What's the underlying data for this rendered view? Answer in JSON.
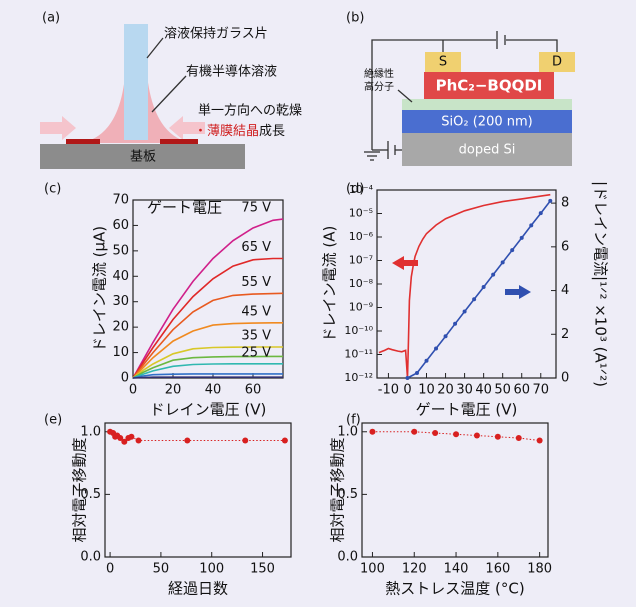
{
  "diagram_a": {
    "label": "(a)",
    "glass": "溶液保持ガラス片",
    "solution": "有機半導体溶液",
    "drying": "単一方向への乾燥",
    "growth_prefix": "・",
    "growth_highlight": "薄膜結晶",
    "growth_suffix": "成長",
    "substrate": "基板"
  },
  "diagram_b": {
    "label": "(b)",
    "source": "S",
    "drain": "D",
    "semiconductor": "PhC₂−BQQDI",
    "insulator": [
      "絶縁性",
      "高分子"
    ],
    "oxide": "SiO₂ (200 nm)",
    "gate": "doped Si"
  },
  "chart_data": [
    {
      "type": "line",
      "label": "(c)",
      "annotation": "ゲート電圧",
      "xlabel": "ドレイン電圧 (V)",
      "ylabel": "ドレイン電流 (μA)",
      "x": [
        0,
        5,
        10,
        20,
        30,
        40,
        50,
        60,
        70,
        75
      ],
      "xlim": [
        0,
        75
      ],
      "xticks": [
        0,
        20,
        40,
        60
      ],
      "ylim": [
        0,
        70
      ],
      "yticks": [
        0,
        10,
        20,
        30,
        40,
        50,
        60,
        70
      ],
      "series": [
        {
          "name": "75 V",
          "color": "#d0208a",
          "values": [
            0,
            7,
            14,
            27,
            38,
            47,
            54,
            59,
            62,
            62.5
          ]
        },
        {
          "name": "65 V",
          "color": "#e02828",
          "values": [
            0,
            6,
            12,
            23,
            32,
            39,
            44,
            46.5,
            47,
            47
          ]
        },
        {
          "name": "55 V",
          "color": "#e85a20",
          "values": [
            0,
            5,
            10,
            19,
            26,
            30.5,
            32.5,
            33,
            33.2,
            33.3
          ]
        },
        {
          "name": "45 V",
          "color": "#f08a20",
          "values": [
            0,
            4,
            8,
            14.5,
            18.5,
            20.8,
            21.4,
            21.6,
            21.7,
            21.7
          ]
        },
        {
          "name": "35 V",
          "color": "#d8c828",
          "values": [
            0,
            3,
            5.5,
            9.5,
            11.5,
            12,
            12.1,
            12.2,
            12.2,
            12.2
          ]
        },
        {
          "color": "#6cb840",
          "values": [
            0,
            2.2,
            4,
            7,
            8,
            8.3,
            8.4,
            8.4,
            8.5,
            8.5
          ]
        },
        {
          "name": "25 V",
          "color": "#30b8b0",
          "values": [
            0,
            1.5,
            2.8,
            4.6,
            5.3,
            5.5,
            5.6,
            5.6,
            5.6,
            5.6
          ]
        },
        {
          "color": "#3070c8",
          "values": [
            0,
            0.8,
            1.3,
            1.5,
            1.6,
            1.6,
            1.6,
            1.6,
            1.6,
            1.6
          ]
        },
        {
          "color": "#303070",
          "values": [
            0,
            0.2,
            0.3,
            0.3,
            0.3,
            0.3,
            0.3,
            0.3,
            0.3,
            0.3
          ]
        }
      ]
    },
    {
      "type": "line",
      "label": "(d)",
      "xlabel": "ゲート電圧 (V)",
      "ylabel": "ドレイン電流 (A)",
      "y2label": "|ドレイン電流|¹ᐟ² ×10³ (A¹ᐟ²)",
      "xlim": [
        -16,
        78
      ],
      "xticks": [
        -10,
        0,
        10,
        20,
        30,
        40,
        50,
        60,
        70
      ],
      "yscale": "log",
      "ylim": [
        1e-12,
        0.0001
      ],
      "yticks": [
        {
          "value": 1e-12,
          "label": "10⁻¹²"
        },
        {
          "value": 1e-11,
          "label": "10⁻¹¹"
        },
        {
          "value": 1e-10,
          "label": "10⁻¹⁰"
        },
        {
          "value": 1e-09,
          "label": "10⁻⁹"
        },
        {
          "value": 1e-08,
          "label": "10⁻⁸"
        },
        {
          "value": 1e-07,
          "label": "10⁻⁷"
        },
        {
          "value": 1e-06,
          "label": "10⁻⁶"
        },
        {
          "value": 1e-05,
          "label": "10⁻⁵"
        },
        {
          "value": 0.0001,
          "label": "10⁻⁴"
        }
      ],
      "y2lim": [
        0,
        8.6
      ],
      "y2ticks": [
        0,
        2,
        4,
        6,
        8
      ],
      "series": [
        {
          "color": "#e03030",
          "x": [
            -15,
            -12,
            -10,
            -8,
            -5,
            -3,
            -1,
            0,
            0.5,
            1,
            2,
            3,
            4,
            6,
            8,
            10,
            15,
            20,
            30,
            40,
            50,
            60,
            70,
            75
          ],
          "values": [
            1.2e-11,
            1.5e-11,
            1.8e-11,
            1.6e-11,
            1.4e-11,
            1.3e-11,
            1.5e-11,
            1e-12,
            3e-11,
            2e-09,
            2e-08,
            6e-08,
            1.5e-07,
            4e-07,
            8e-07,
            1.4e-06,
            3.2e-06,
            6e-06,
            1.3e-05,
            2.2e-05,
            3.2e-05,
            4.2e-05,
            5.5e-05,
            6.3e-05
          ]
        },
        {
          "color": "#3050b0",
          "axis": "y2",
          "marker": "circle",
          "x": [
            0,
            5,
            10,
            15,
            20,
            25,
            30,
            35,
            40,
            45,
            50,
            55,
            60,
            65,
            70,
            75
          ],
          "values": [
            0,
            0.23,
            0.79,
            1.35,
            1.91,
            2.48,
            3.04,
            3.6,
            4.16,
            4.73,
            5.29,
            5.85,
            6.41,
            6.98,
            7.54,
            8.1
          ]
        }
      ]
    },
    {
      "type": "line",
      "label": "(e)",
      "xlabel": "経過日数",
      "ylabel": "相対電子移動度",
      "xlim": [
        -5,
        178
      ],
      "xticks": [
        0,
        50,
        100,
        150
      ],
      "ylim": [
        0,
        1.07
      ],
      "yticks": [
        {
          "value": 0,
          "label": "0.0"
        },
        {
          "value": 0.5,
          "label": "0.5"
        },
        {
          "value": 1,
          "label": "1.0"
        }
      ],
      "series": [
        {
          "color": "#d82020",
          "marker": "circle",
          "linestyle": "dotted",
          "x": [
            0,
            3,
            5,
            7,
            10,
            14,
            18,
            21,
            28,
            76,
            133,
            172
          ],
          "values": [
            1,
            0.99,
            0.96,
            0.97,
            0.95,
            0.92,
            0.95,
            0.96,
            0.93,
            0.93,
            0.93,
            0.93
          ]
        }
      ]
    },
    {
      "type": "line",
      "label": "(f)",
      "xlabel": "熱ストレス温度 (°C)",
      "ylabel": "相対電子移動度",
      "xlim": [
        95,
        184
      ],
      "xticks": [
        100,
        120,
        140,
        160,
        180
      ],
      "ylim": [
        0,
        1.07
      ],
      "yticks": [
        {
          "value": 0,
          "label": "0.0"
        },
        {
          "value": 0.5,
          "label": "0.5"
        },
        {
          "value": 1,
          "label": "1.0"
        }
      ],
      "series": [
        {
          "color": "#d82020",
          "marker": "circle",
          "linestyle": "dotted",
          "x": [
            100,
            120,
            130,
            140,
            150,
            160,
            170,
            180
          ],
          "values": [
            1,
            1,
            0.99,
            0.98,
            0.97,
            0.96,
            0.95,
            0.93
          ]
        }
      ]
    }
  ]
}
